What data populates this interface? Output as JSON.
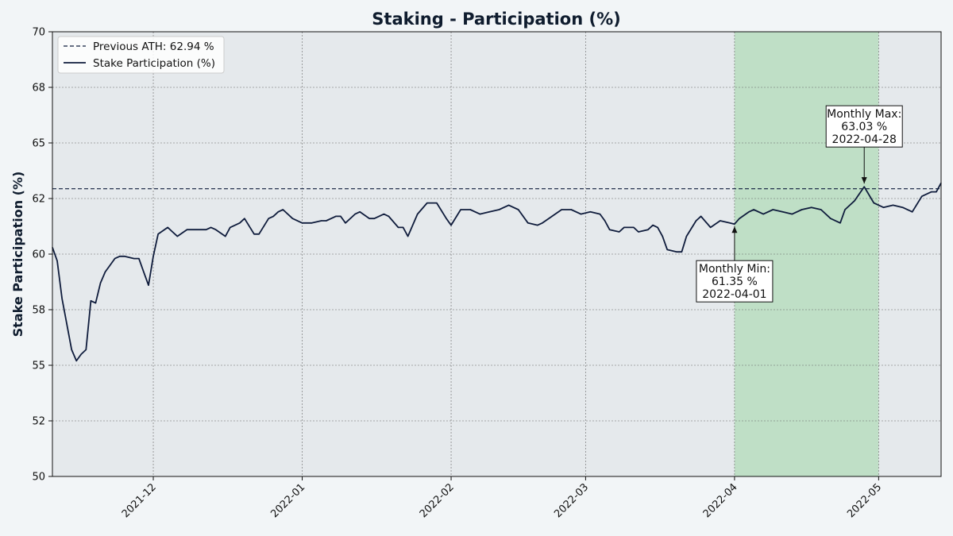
{
  "chart_data": {
    "type": "line",
    "title": "Staking - Participation (%)",
    "xlabel": "",
    "ylabel": "Stake Participation (%)",
    "x_range": [
      "2021-11-10",
      "2022-05-14"
    ],
    "ylim": [
      50,
      70
    ],
    "y_ticks": [
      {
        "value": 50,
        "label": "50"
      },
      {
        "value": 52.5,
        "label": "52"
      },
      {
        "value": 55,
        "label": "55"
      },
      {
        "value": 57.5,
        "label": "58"
      },
      {
        "value": 60,
        "label": "60"
      },
      {
        "value": 62.5,
        "label": "62"
      },
      {
        "value": 65,
        "label": "65"
      },
      {
        "value": 67.5,
        "label": "68"
      },
      {
        "value": 70,
        "label": "70"
      }
    ],
    "x_ticks": [
      "2021-12",
      "2022-01",
      "2022-02",
      "2022-03",
      "2022-04",
      "2022-05"
    ],
    "x_tick_dates": [
      "2021-12-01",
      "2022-01-01",
      "2022-02-01",
      "2022-03-01",
      "2022-04-01",
      "2022-05-01"
    ],
    "grid": true,
    "legend_position": "top-left",
    "highlight_range": {
      "start": "2022-04-01",
      "end": "2022-05-01",
      "color": "#bfdfc6"
    },
    "reference_line": {
      "name": "Previous ATH: 62.94 %",
      "value": 62.94,
      "style": "dashed",
      "color": "#0f1c3c"
    },
    "series": [
      {
        "name": "Stake Participation (%)",
        "color": "#0f1c3c",
        "x": [
          "2021-11-10",
          "2021-11-11",
          "2021-11-12",
          "2021-11-14",
          "2021-11-15",
          "2021-11-16",
          "2021-11-17",
          "2021-11-18",
          "2021-11-19",
          "2021-11-20",
          "2021-11-21",
          "2021-11-22",
          "2021-11-23",
          "2021-11-24",
          "2021-11-25",
          "2021-11-27",
          "2021-11-28",
          "2021-11-29",
          "2021-11-30",
          "2021-12-01",
          "2021-12-02",
          "2021-12-04",
          "2021-12-05",
          "2021-12-06",
          "2021-12-08",
          "2021-12-10",
          "2021-12-12",
          "2021-12-13",
          "2021-12-14",
          "2021-12-16",
          "2021-12-17",
          "2021-12-19",
          "2021-12-20",
          "2021-12-22",
          "2021-12-23",
          "2021-12-25",
          "2021-12-26",
          "2021-12-27",
          "2021-12-28",
          "2021-12-30",
          "2022-01-01",
          "2022-01-03",
          "2022-01-05",
          "2022-01-06",
          "2022-01-08",
          "2022-01-09",
          "2022-01-10",
          "2022-01-12",
          "2022-01-13",
          "2022-01-15",
          "2022-01-16",
          "2022-01-18",
          "2022-01-19",
          "2022-01-21",
          "2022-01-22",
          "2022-01-23",
          "2022-01-25",
          "2022-01-27",
          "2022-01-29",
          "2022-01-31",
          "2022-02-01",
          "2022-02-03",
          "2022-02-05",
          "2022-02-07",
          "2022-02-09",
          "2022-02-11",
          "2022-02-13",
          "2022-02-15",
          "2022-02-17",
          "2022-02-19",
          "2022-02-20",
          "2022-02-22",
          "2022-02-24",
          "2022-02-26",
          "2022-02-28",
          "2022-03-02",
          "2022-03-04",
          "2022-03-05",
          "2022-03-06",
          "2022-03-08",
          "2022-03-09",
          "2022-03-11",
          "2022-03-12",
          "2022-03-14",
          "2022-03-15",
          "2022-03-16",
          "2022-03-17",
          "2022-03-18",
          "2022-03-20",
          "2022-03-21",
          "2022-03-22",
          "2022-03-24",
          "2022-03-25",
          "2022-03-27",
          "2022-03-29",
          "2022-03-31",
          "2022-04-01",
          "2022-04-02",
          "2022-04-04",
          "2022-04-05",
          "2022-04-07",
          "2022-04-09",
          "2022-04-11",
          "2022-04-13",
          "2022-04-15",
          "2022-04-17",
          "2022-04-19",
          "2022-04-21",
          "2022-04-23",
          "2022-04-24",
          "2022-04-26",
          "2022-04-28",
          "2022-04-30",
          "2022-05-02",
          "2022-05-04",
          "2022-05-06",
          "2022-05-08",
          "2022-05-10",
          "2022-05-12",
          "2022-05-13",
          "2022-05-14"
        ],
        "values": [
          60.3,
          59.7,
          58.0,
          55.7,
          55.2,
          55.5,
          55.7,
          57.9,
          57.8,
          58.7,
          59.2,
          59.5,
          59.8,
          59.9,
          59.9,
          59.8,
          59.8,
          59.2,
          58.6,
          59.9,
          60.9,
          61.2,
          61.0,
          60.8,
          61.1,
          61.1,
          61.1,
          61.2,
          61.1,
          60.8,
          61.2,
          61.4,
          61.6,
          60.9,
          60.9,
          61.6,
          61.7,
          61.9,
          62.0,
          61.6,
          61.4,
          61.4,
          61.5,
          61.5,
          61.7,
          61.7,
          61.4,
          61.8,
          61.9,
          61.6,
          61.6,
          61.8,
          61.7,
          61.2,
          61.2,
          60.8,
          61.8,
          62.3,
          62.3,
          61.6,
          61.3,
          62.0,
          62.0,
          61.8,
          61.9,
          62.0,
          62.2,
          62.0,
          61.4,
          61.3,
          61.4,
          61.7,
          62.0,
          62.0,
          61.8,
          61.9,
          61.8,
          61.5,
          61.1,
          61.0,
          61.2,
          61.2,
          61.0,
          61.1,
          61.3,
          61.2,
          60.8,
          60.2,
          60.1,
          60.1,
          60.8,
          61.5,
          61.7,
          61.2,
          61.5,
          61.4,
          61.35,
          61.6,
          61.9,
          62.0,
          61.8,
          62.0,
          61.9,
          61.8,
          62.0,
          62.1,
          62.0,
          61.6,
          61.4,
          62.0,
          62.4,
          63.03,
          62.3,
          62.1,
          62.2,
          62.1,
          61.9,
          62.6,
          62.8,
          62.8,
          63.2
        ]
      }
    ],
    "annotations": [
      {
        "lines": [
          "Monthly Min:",
          "61.35 %",
          "2022-04-01"
        ],
        "target_x": "2022-04-01",
        "target_y": 61.35,
        "placement": "below"
      },
      {
        "lines": [
          "Monthly Max:",
          "63.03 %",
          "2022-04-28"
        ],
        "target_x": "2022-04-28",
        "target_y": 63.03,
        "placement": "above"
      }
    ]
  }
}
